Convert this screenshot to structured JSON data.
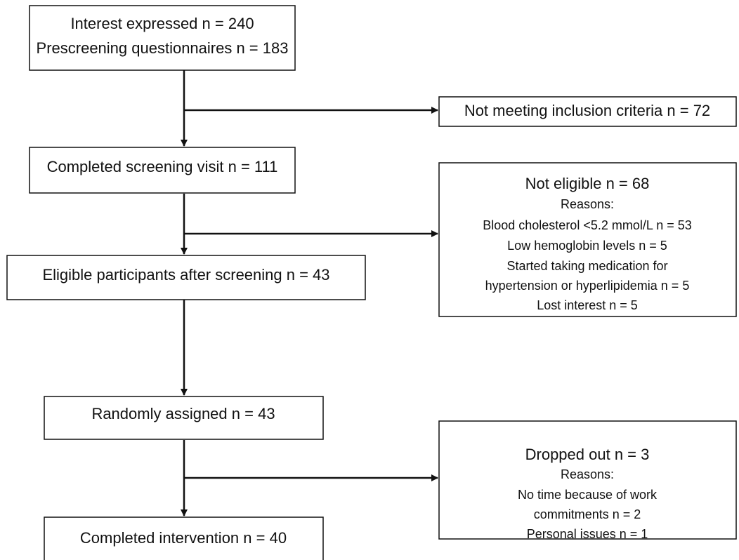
{
  "nodes": [
    {
      "lines": [
        "Interest expressed n = 240",
        "Prescreening questionnaires n = 183"
      ]
    },
    {
      "lines": [
        "Not meeting inclusion criteria n = 72"
      ]
    },
    {
      "lines": [
        "Completed screening visit n = 111"
      ]
    },
    {
      "lines": [
        "Not eligible n = 68",
        "Reasons:",
        "Blood cholesterol <5.2 mmol/L n = 53",
        "Low hemoglobin levels n = 5",
        "Started taking medication for",
        "hypertension or hyperlipidemia n = 5",
        "Lost interest n = 5"
      ]
    },
    {
      "lines": [
        "Eligible participants after screening n = 43"
      ]
    },
    {
      "lines": [
        "Randomly assigned n = 43"
      ]
    },
    {
      "lines": [
        "Dropped out n = 3",
        "Reasons:",
        "No time because of work",
        "commitments n = 2",
        "Personal issues n = 1"
      ]
    },
    {
      "lines": [
        "Completed intervention n = 40"
      ]
    }
  ]
}
